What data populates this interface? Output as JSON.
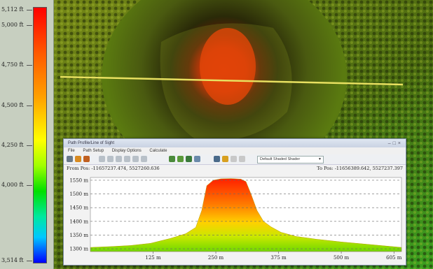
{
  "legend": {
    "ticks": [
      {
        "label": "5,112 ft",
        "value": 5112
      },
      {
        "label": "5,000 ft",
        "value": 5000
      },
      {
        "label": "4,750 ft",
        "value": 4750
      },
      {
        "label": "4,500 ft",
        "value": 4500
      },
      {
        "label": "4,250 ft",
        "value": 4250
      },
      {
        "label": "4,000 ft",
        "value": 4000
      },
      {
        "label": "3,514 ft",
        "value": 3514
      }
    ]
  },
  "window": {
    "title": "Path Profile/Line of Sight",
    "menu": [
      "File",
      "Path Setup",
      "Display Options",
      "Calculate"
    ],
    "shader_select": "Default Shaded Shader",
    "from_pos": "From Pos: -11657237.474, 5527260.636",
    "to_pos": "To Pos: -11656389.642, 5527237.397"
  },
  "icons": [
    "print-icon",
    "profile-icon",
    "zoom-icon",
    "measure-icon",
    "tools-icon",
    "chart-icon",
    "export-icon",
    "settings-icon"
  ],
  "chart_data": {
    "type": "area",
    "title": "",
    "xlabel": "",
    "ylabel": "",
    "xlim": [
      0,
      620
    ],
    "ylim": [
      1290,
      1560
    ],
    "x_ticks": [
      {
        "label": "125 m",
        "value": 125
      },
      {
        "label": "250 m",
        "value": 250
      },
      {
        "label": "375 m",
        "value": 375
      },
      {
        "label": "500 m",
        "value": 500
      },
      {
        "label": "605 m",
        "value": 605
      }
    ],
    "y_ticks": [
      {
        "label": "1550 m",
        "value": 1550
      },
      {
        "label": "1500 m",
        "value": 1500
      },
      {
        "label": "1450 m",
        "value": 1450
      },
      {
        "label": "1400 m",
        "value": 1400
      },
      {
        "label": "1350 m",
        "value": 1350
      },
      {
        "label": "1300 m",
        "value": 1300
      }
    ],
    "grid": true,
    "series": [
      {
        "x": [
          0,
          40,
          80,
          120,
          160,
          190,
          210,
          222,
          232,
          245,
          260,
          280,
          300,
          310,
          320,
          332,
          345,
          360,
          380,
          410,
          450,
          500,
          560,
          620
        ],
        "y": [
          1305,
          1308,
          1312,
          1320,
          1338,
          1355,
          1378,
          1440,
          1530,
          1550,
          1555,
          1556,
          1554,
          1545,
          1500,
          1440,
          1400,
          1380,
          1360,
          1345,
          1335,
          1325,
          1315,
          1305
        ]
      }
    ]
  }
}
